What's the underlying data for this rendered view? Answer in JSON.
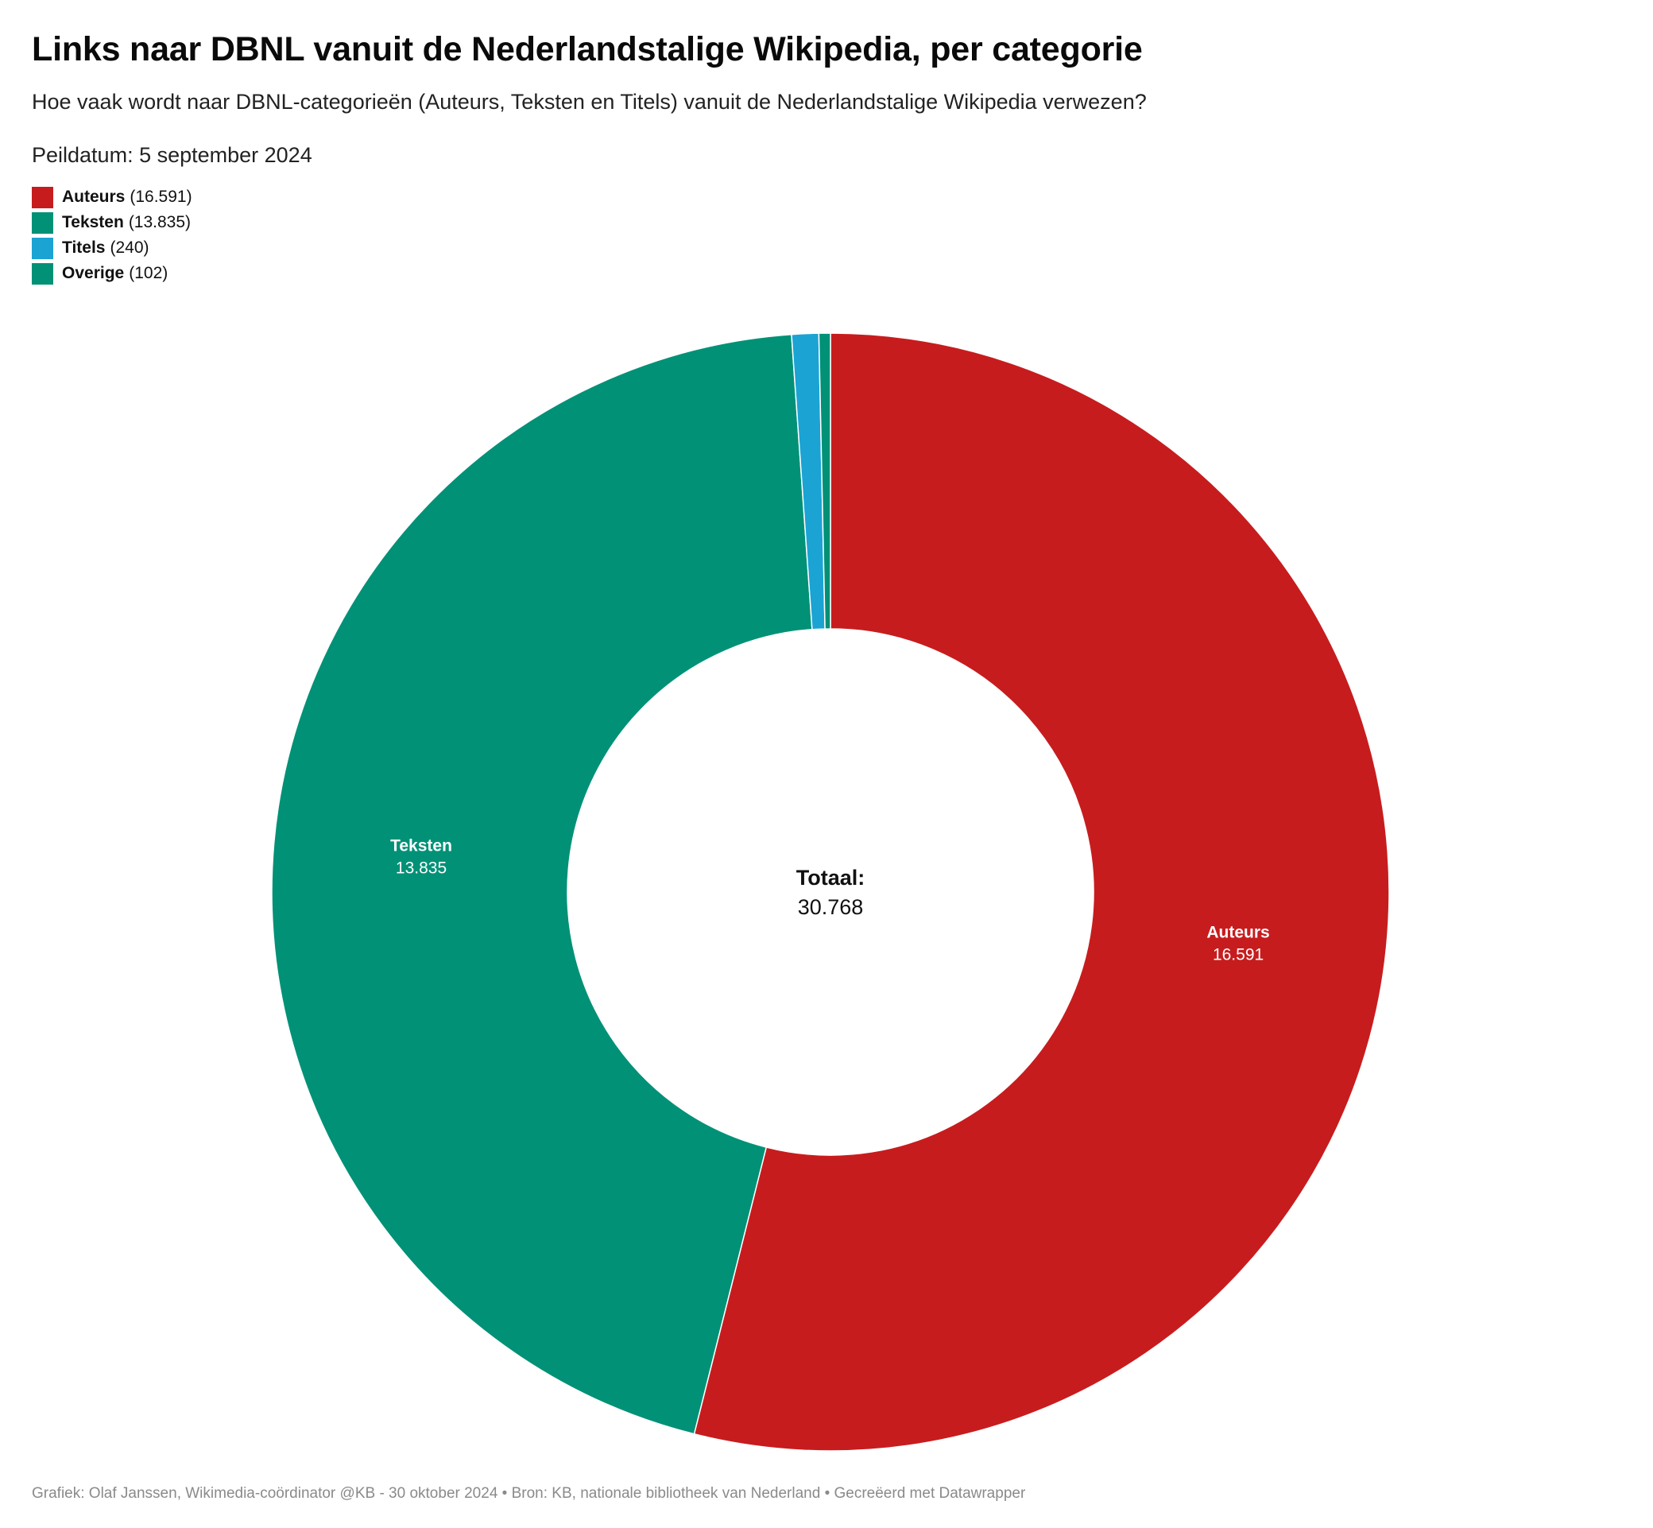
{
  "header": {
    "title": "Links naar DBNL vanuit de Nederlandstalige Wikipedia, per categorie",
    "subtitle": "Hoe vaak wordt naar DBNL-categorieën (Auteurs, Teksten en Titels) vanuit de Nederlandstalige Wikipedia verwezen?",
    "date": "Peildatum: 5 september 2024"
  },
  "legend": [
    {
      "name": "Auteurs",
      "value_text": "(16.591)",
      "color": "#c71c1e"
    },
    {
      "name": "Teksten",
      "value_text": "(13.835)",
      "color": "#009177"
    },
    {
      "name": "Titels",
      "value_text": "(240)",
      "color": "#1ba3d4"
    },
    {
      "name": "Overige",
      "value_text": "(102)",
      "color": "#009177"
    }
  ],
  "chart_data": {
    "type": "pie",
    "variant": "donut",
    "slices": [
      {
        "label": "Auteurs",
        "value": 16591,
        "value_label": "16.591",
        "color": "#c71c1e",
        "show_label": true
      },
      {
        "label": "Teksten",
        "value": 13835,
        "value_label": "13.835",
        "color": "#009177",
        "show_label": true
      },
      {
        "label": "Titels",
        "value": 240,
        "value_label": "240",
        "color": "#1ba3d4",
        "show_label": false
      },
      {
        "label": "Overige",
        "value": 102,
        "value_label": "102",
        "color": "#009177",
        "show_label": false
      }
    ],
    "center_label": "Totaal:",
    "center_value": "30.768",
    "legend_position": "top-left"
  },
  "footer": {
    "credit": "Grafiek: Olaf Janssen, Wikimedia-coördinator @KB - 30 oktober 2024 • Bron: KB, nationale bibliotheek van Nederland • Gecreëerd met Datawrapper"
  }
}
